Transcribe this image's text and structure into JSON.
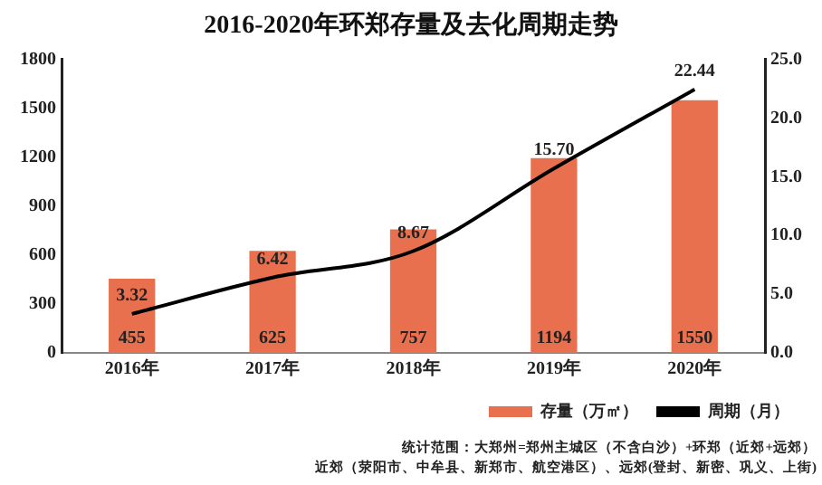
{
  "chart_data": {
    "type": "bar",
    "title": "2016-2020年环郑存量及去化周期走势",
    "categories": [
      "2016年",
      "2017年",
      "2018年",
      "2019年",
      "2020年"
    ],
    "series": [
      {
        "name": "存量（万㎡）",
        "color": "#e8704f",
        "values": [
          455,
          625,
          757,
          1194,
          1550
        ],
        "value_labels": [
          "455",
          "625",
          "757",
          "1194",
          "1550"
        ]
      },
      {
        "name": "周期（月）",
        "type": "line",
        "axis": "y2",
        "color": "#000000",
        "values": [
          3.32,
          6.42,
          8.67,
          15.7,
          22.44
        ],
        "value_labels": [
          "3.32",
          "6.42",
          "8.67",
          "15.70",
          "22.44"
        ]
      }
    ],
    "ylim": [
      0,
      1800
    ],
    "yticks": [
      0,
      300,
      600,
      900,
      1200,
      1500,
      1800
    ],
    "y2lim": [
      0,
      25
    ],
    "y2ticks": [
      {
        "value": 0,
        "label": "0.0"
      },
      {
        "value": 5,
        "label": "5.0"
      },
      {
        "value": 10,
        "label": "10.0"
      },
      {
        "value": 15,
        "label": "15.0"
      },
      {
        "value": 20,
        "label": "20.0"
      },
      {
        "value": 25,
        "label": "25.0"
      }
    ],
    "legend": "bottom",
    "grid": false,
    "marker": "none",
    "line_style": "solid",
    "annotations": [
      "统计范围：大郑州=郑州主城区（不含白沙）+环郑（近郊+远郊）",
      "近郊（荥阳市、中牟县、新郑市、航空港区）、远郊(登封、新密、巩义、上街)"
    ]
  }
}
